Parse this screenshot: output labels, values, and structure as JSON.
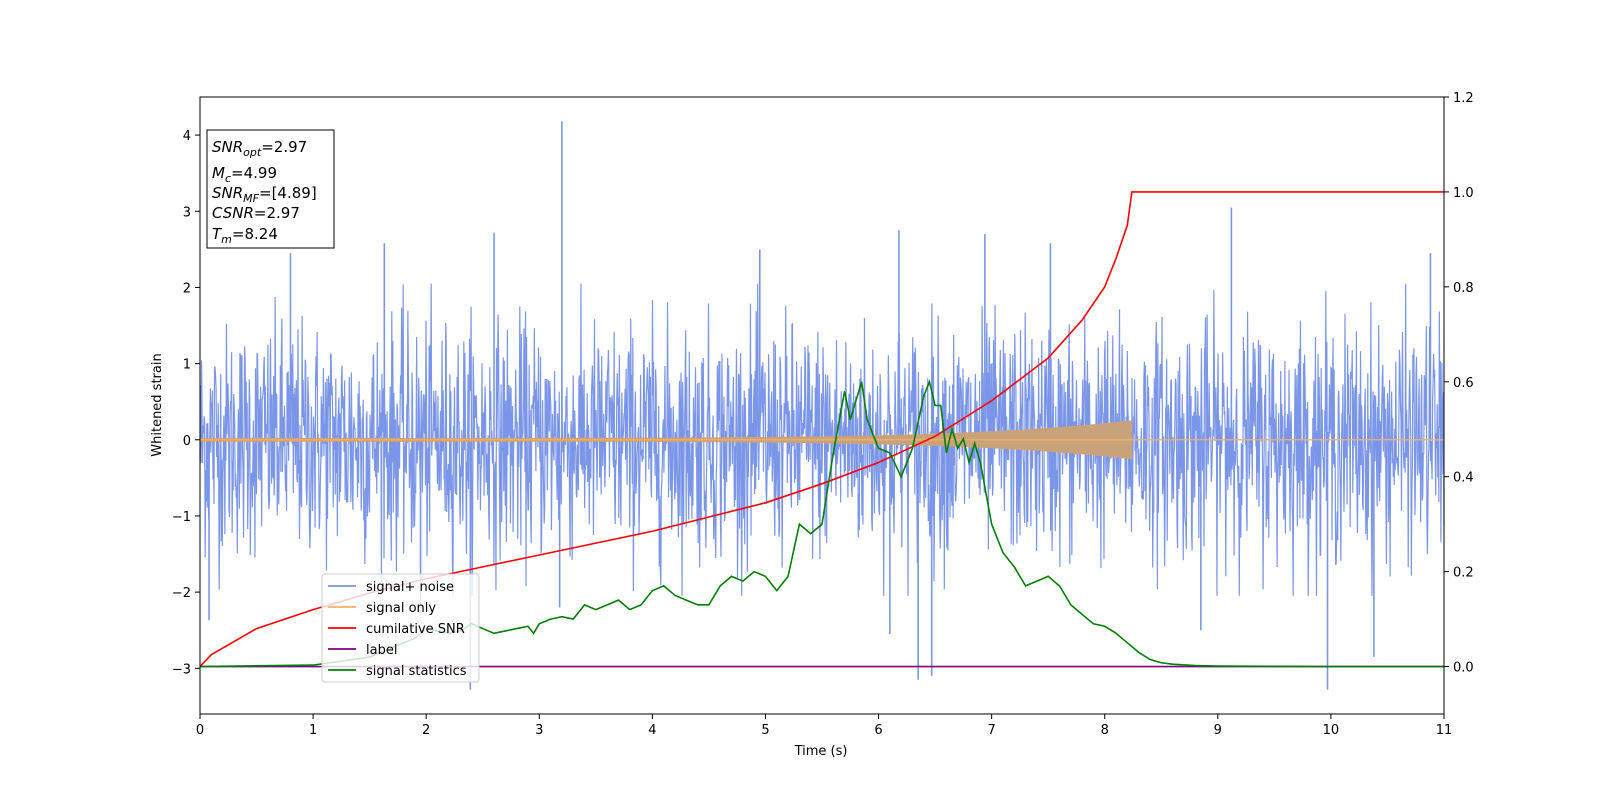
{
  "chart_data": {
    "type": "line",
    "xlabel": "Time (s)",
    "ylabel": "Whitened strain",
    "xlim": [
      0,
      11
    ],
    "ylim": [
      -3.6,
      4.5
    ],
    "ylim_right": [
      -0.1,
      1.2
    ],
    "xticks": [
      "0",
      "1",
      "2",
      "3",
      "4",
      "5",
      "6",
      "7",
      "8",
      "9",
      "10",
      "11"
    ],
    "yticks": [
      "−3",
      "−2",
      "−1",
      "0",
      "1",
      "2",
      "3",
      "4"
    ],
    "yticks_right": [
      "0.0",
      "0.2",
      "0.4",
      "0.6",
      "0.8",
      "1.0",
      "1.2"
    ],
    "grid": false,
    "legend_position": "lower-left",
    "annotation": {
      "snr_opt": "2.97",
      "mc": "4.99",
      "snr_mf": "[4.89]",
      "csnr": "2.97",
      "tm": "8.24"
    },
    "series": [
      {
        "name": "signal+ noise",
        "color": "#7b96e8",
        "axis": "left",
        "description": "noisy whitened strain, roughly within ±1.8 with spikes",
        "spikes": [
          [
            0.08,
            -2.37
          ],
          [
            0.8,
            2.45
          ],
          [
            1.63,
            2.58
          ],
          [
            1.95,
            -2.3
          ],
          [
            2.39,
            -3.28
          ],
          [
            2.6,
            2.72
          ],
          [
            3.2,
            4.18
          ],
          [
            3.18,
            -2.2
          ],
          [
            4.95,
            2.5
          ],
          [
            6.1,
            -2.55
          ],
          [
            6.18,
            2.75
          ],
          [
            6.35,
            -3.15
          ],
          [
            6.47,
            -3.1
          ],
          [
            6.94,
            2.7
          ],
          [
            7.52,
            2.58
          ],
          [
            8.85,
            -2.5
          ],
          [
            9.12,
            3.05
          ],
          [
            9.97,
            -3.28
          ],
          [
            10.38,
            -2.85
          ],
          [
            10.88,
            2.45
          ]
        ]
      },
      {
        "name": "signal only",
        "color": "#f5b066",
        "axis": "left",
        "chirp_end": 8.24,
        "amplitude_start": 0.02,
        "amplitude_end": 0.25
      },
      {
        "name": "cumilative SNR",
        "color": "#ff0000",
        "axis": "right",
        "x": [
          0,
          0.1,
          0.5,
          1,
          1.5,
          2,
          2.5,
          3,
          3.5,
          4,
          4.5,
          5,
          5.5,
          6,
          6.5,
          7,
          7.5,
          7.8,
          8.0,
          8.1,
          8.2,
          8.24,
          11
        ],
        "values": [
          0.0,
          0.025,
          0.08,
          0.12,
          0.155,
          0.185,
          0.21,
          0.235,
          0.26,
          0.285,
          0.315,
          0.345,
          0.385,
          0.43,
          0.485,
          0.56,
          0.65,
          0.73,
          0.8,
          0.86,
          0.93,
          1.0,
          1.0
        ]
      },
      {
        "name": "label",
        "color": "#800080",
        "axis": "right",
        "x": [
          0,
          11
        ],
        "values": [
          0.0,
          0.0
        ]
      },
      {
        "name": "signal statistics",
        "color": "#008000",
        "axis": "right",
        "x": [
          0,
          1,
          1.5,
          1.7,
          1.8,
          1.9,
          2.0,
          2.1,
          2.2,
          2.3,
          2.4,
          2.5,
          2.6,
          2.7,
          2.8,
          2.9,
          2.95,
          3.0,
          3.1,
          3.2,
          3.3,
          3.4,
          3.5,
          3.6,
          3.7,
          3.8,
          3.9,
          4.0,
          4.1,
          4.2,
          4.3,
          4.4,
          4.5,
          4.6,
          4.7,
          4.8,
          4.9,
          5.0,
          5.1,
          5.2,
          5.3,
          5.4,
          5.5,
          5.6,
          5.7,
          5.75,
          5.8,
          5.85,
          5.9,
          6.0,
          6.1,
          6.2,
          6.3,
          6.4,
          6.45,
          6.5,
          6.55,
          6.6,
          6.65,
          6.7,
          6.75,
          6.8,
          6.85,
          6.9,
          7.0,
          7.1,
          7.2,
          7.3,
          7.4,
          7.5,
          7.6,
          7.7,
          7.8,
          7.9,
          8.0,
          8.1,
          8.2,
          8.3,
          8.4,
          8.5,
          8.6,
          8.8,
          9.0,
          10,
          11
        ],
        "values": [
          0.0,
          0.003,
          0.02,
          0.04,
          0.05,
          0.06,
          0.08,
          0.075,
          0.07,
          0.075,
          0.09,
          0.08,
          0.07,
          0.075,
          0.08,
          0.085,
          0.07,
          0.09,
          0.1,
          0.105,
          0.1,
          0.13,
          0.12,
          0.13,
          0.14,
          0.12,
          0.13,
          0.16,
          0.17,
          0.15,
          0.14,
          0.13,
          0.13,
          0.17,
          0.19,
          0.18,
          0.2,
          0.19,
          0.16,
          0.19,
          0.3,
          0.28,
          0.3,
          0.45,
          0.58,
          0.52,
          0.56,
          0.6,
          0.52,
          0.46,
          0.45,
          0.4,
          0.46,
          0.57,
          0.6,
          0.55,
          0.55,
          0.45,
          0.5,
          0.46,
          0.48,
          0.43,
          0.47,
          0.43,
          0.3,
          0.24,
          0.21,
          0.17,
          0.18,
          0.19,
          0.17,
          0.13,
          0.11,
          0.09,
          0.085,
          0.07,
          0.05,
          0.03,
          0.015,
          0.008,
          0.005,
          0.002,
          0.001,
          0.0,
          0.0
        ]
      }
    ]
  }
}
